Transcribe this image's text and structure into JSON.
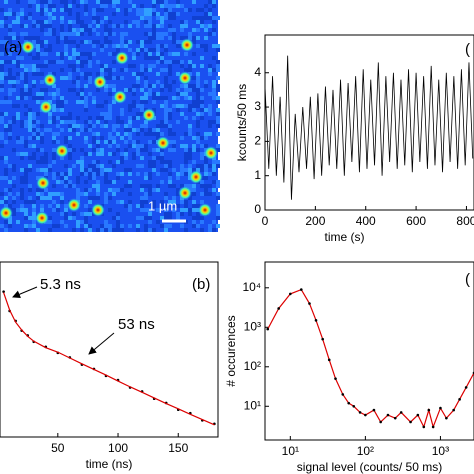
{
  "chart_data": [
    {
      "type": "image",
      "label": "(a)",
      "scale_bar_label": "1 µm"
    },
    {
      "type": "line",
      "label": "(",
      "xlabel": "time (s)",
      "ylabel": "kcounts/50 ms",
      "x": [
        0,
        15,
        30,
        45,
        60,
        75,
        90,
        105,
        120,
        135,
        150,
        165,
        180,
        195,
        210,
        225,
        240,
        255,
        270,
        285,
        300,
        315,
        330,
        345,
        360,
        375,
        390,
        405,
        420,
        435,
        450,
        465,
        480,
        495,
        510,
        525,
        540,
        555,
        570,
        585,
        600,
        615,
        630,
        645,
        660,
        675,
        690,
        705,
        720,
        735,
        750,
        765,
        780,
        795,
        810,
        825
      ],
      "series": [
        {
          "color": "#000000",
          "values": [
            3.6,
            1.2,
            3.9,
            1.0,
            3.3,
            0.8,
            4.5,
            0.3,
            2.8,
            1.1,
            3.0,
            1.2,
            3.3,
            0.9,
            3.4,
            1.0,
            3.6,
            1.3,
            3.5,
            1.2,
            3.8,
            1.0,
            3.7,
            1.4,
            3.9,
            1.1,
            4.1,
            1.2,
            3.8,
            1.3,
            4.3,
            1.0,
            3.9,
            1.4,
            4.0,
            1.2,
            3.8,
            1.3,
            4.1,
            1.1,
            4.0,
            1.4,
            3.9,
            1.2,
            4.2,
            1.3,
            3.8,
            1.1,
            4.0,
            1.4,
            3.9,
            1.2,
            4.1,
            1.3,
            4.3,
            1.5
          ]
        }
      ],
      "xlim": [
        0,
        830
      ],
      "ylim": [
        0,
        5.1
      ],
      "xticks": [
        0,
        200,
        400,
        600,
        800
      ],
      "yticks": [
        0,
        1,
        2,
        3,
        4
      ]
    },
    {
      "type": "line",
      "label": "(b)",
      "xlabel": "time (ns)",
      "log_y": true,
      "annotations": [
        "5.3 ns",
        "53 ns"
      ],
      "x": [
        5,
        10,
        15,
        20,
        25,
        30,
        40,
        50,
        60,
        70,
        80,
        90,
        100,
        110,
        120,
        130,
        140,
        150,
        160,
        170,
        180
      ],
      "series": [
        {
          "color": "#000000",
          "style": "points",
          "values": [
            21000,
            7600,
            4500,
            2700,
            2100,
            1500,
            1150,
            840,
            660,
            450,
            360,
            250,
            200,
            135,
            110,
            75,
            60,
            42,
            35,
            24,
            20
          ]
        },
        {
          "color": "#dd0000",
          "style": "line",
          "values": [
            20000,
            8000,
            4200,
            2800,
            2000,
            1550,
            1100,
            870,
            640,
            470,
            350,
            260,
            190,
            140,
            105,
            78,
            58,
            44,
            33,
            25,
            19
          ]
        }
      ],
      "xlim": [
        2,
        183
      ],
      "ylim": [
        10,
        100000
      ],
      "xticks": [
        50,
        100,
        150
      ]
    },
    {
      "type": "line",
      "label": "(",
      "xlabel": "signal level (counts/ 50 ms)",
      "ylabel": "# occurences",
      "log_x": true,
      "log_y": true,
      "x": [
        5,
        7,
        10,
        14,
        18,
        22,
        27,
        33,
        40,
        50,
        60,
        70,
        85,
        100,
        130,
        160,
        200,
        250,
        300,
        400,
        500,
        600,
        700,
        800,
        1000,
        1200,
        1500,
        1800,
        2200,
        2800
      ],
      "series": [
        {
          "color": "#dd0000",
          "marker_color": "#000000",
          "style": "line-points",
          "values": [
            900,
            3000,
            7000,
            9000,
            4000,
            1500,
            500,
            150,
            50,
            20,
            12,
            10,
            7,
            6,
            8,
            4,
            6,
            5,
            7,
            4,
            6,
            3,
            8,
            3,
            9,
            5,
            8,
            15,
            30,
            70
          ]
        }
      ],
      "xlim": [
        4.6,
        2800
      ],
      "ylim": [
        1.4,
        45000
      ],
      "xticks": [
        {
          "value": 10,
          "label": "10¹"
        },
        {
          "value": 100,
          "label": "10²"
        },
        {
          "value": 1000,
          "label": "10³"
        }
      ],
      "yticks": [
        {
          "value": 10,
          "label": "10¹"
        },
        {
          "value": 100,
          "label": "10²"
        },
        {
          "value": 1000,
          "label": "10³"
        },
        {
          "value": 10000,
          "label": "10⁴"
        }
      ]
    }
  ]
}
